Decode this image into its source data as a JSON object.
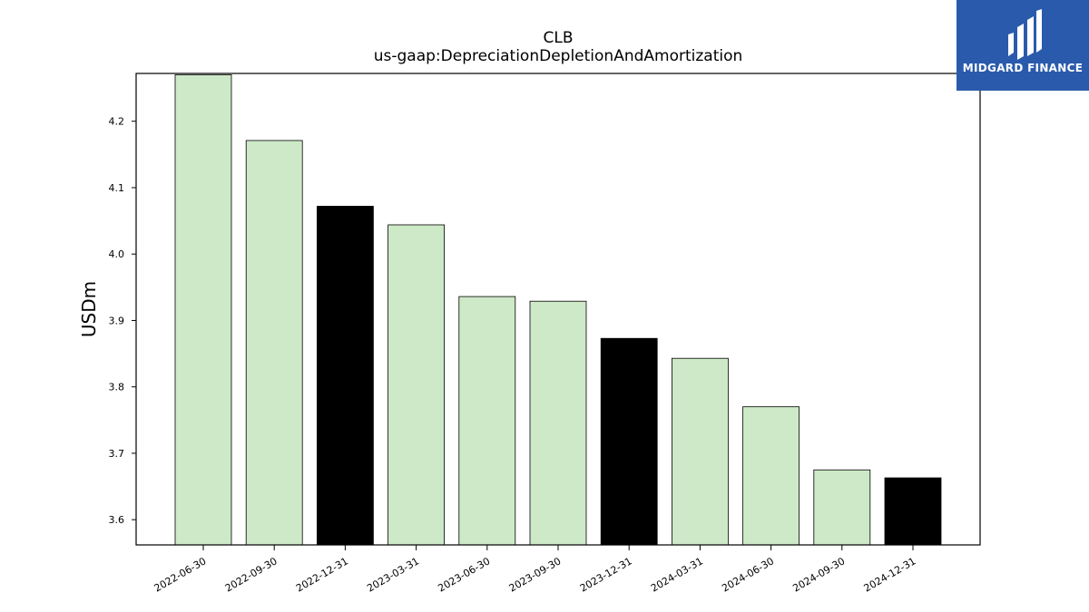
{
  "chart_data": {
    "type": "bar",
    "title": "CLB",
    "subtitle": "us-gaap:DepreciationDepletionAndAmortization",
    "xlabel": "",
    "ylabel": "USDm",
    "categories": [
      "2022-06-30",
      "2022-09-30",
      "2022-12-31",
      "2023-03-31",
      "2023-06-30",
      "2023-09-30",
      "2023-12-31",
      "2024-03-31",
      "2024-06-30",
      "2024-09-30",
      "2024-12-31"
    ],
    "values": [
      4.27,
      4.171,
      4.072,
      4.044,
      3.936,
      3.929,
      3.873,
      3.843,
      3.77,
      3.675,
      3.663
    ],
    "highlight": [
      false,
      false,
      true,
      false,
      false,
      false,
      true,
      false,
      false,
      false,
      true
    ],
    "ylim": [
      3.562,
      4.272
    ],
    "yticks": [
      "3.6",
      "3.7",
      "3.8",
      "3.9",
      "4.0",
      "4.1",
      "4.2"
    ],
    "grid": false,
    "legend": "none",
    "colors": {
      "bar": "#cde9c7",
      "highlight": "#000000",
      "edge": "#000000"
    }
  },
  "logo": {
    "text": "MIDGARD FINANCE",
    "background": "#2a5aac"
  }
}
